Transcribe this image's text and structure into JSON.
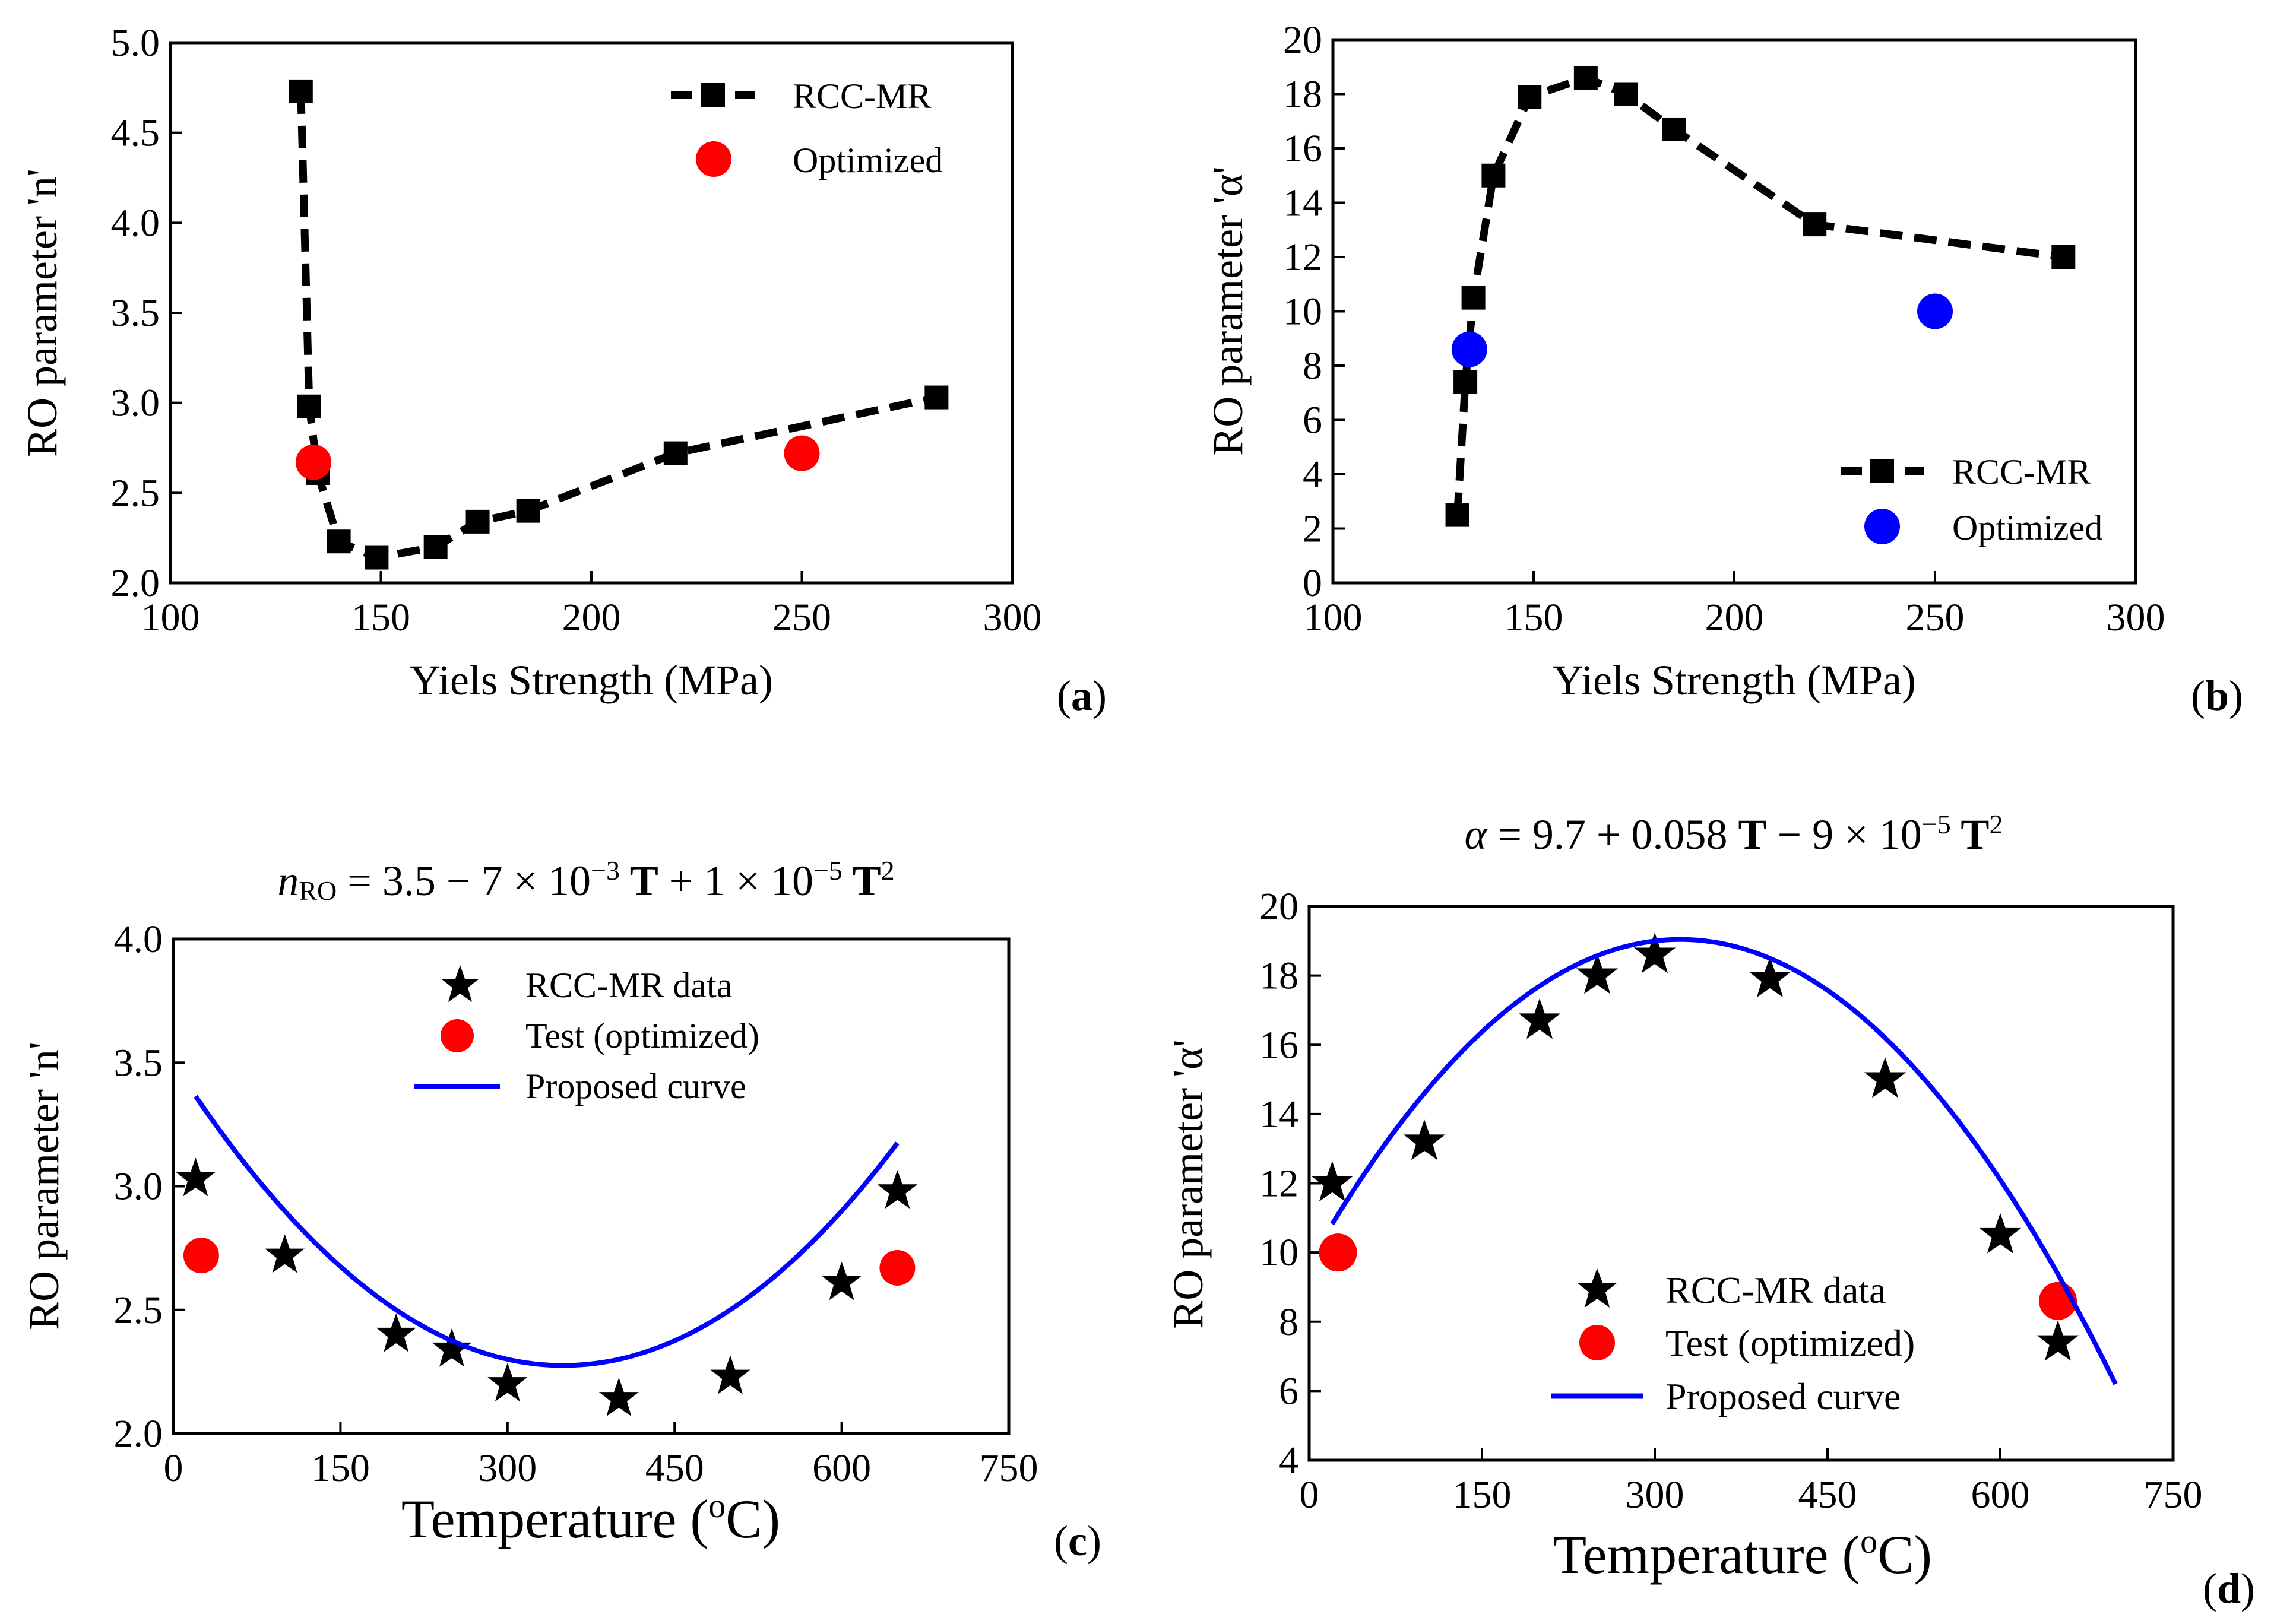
{
  "chart_data": [
    {
      "id": "a",
      "type": "line",
      "panel_label_letter": "a",
      "xlabel": "Yiels Strength (MPa)",
      "ylabel": "RO parameter 'n'",
      "xlim": [
        100,
        300
      ],
      "ylim": [
        2.0,
        5.0
      ],
      "xticks": [
        "100",
        "150",
        "200",
        "250",
        "300"
      ],
      "yticks": [
        "2.0",
        "2.5",
        "3.0",
        "3.5",
        "4.0",
        "4.5",
        "5.0"
      ],
      "legend_position": "top-right",
      "series": [
        {
          "name": "RCC-MR",
          "style": "dashed-line-square",
          "color": "#000000",
          "x": [
            131,
            133,
            135,
            140,
            149,
            163,
            173,
            185,
            220,
            282
          ],
          "y": [
            4.73,
            2.98,
            2.61,
            2.23,
            2.14,
            2.2,
            2.34,
            2.4,
            2.72,
            3.03
          ]
        },
        {
          "name": "Optimized",
          "style": "circle",
          "color": "#ff0000",
          "x": [
            134,
            250
          ],
          "y": [
            2.67,
            2.72
          ]
        }
      ]
    },
    {
      "id": "b",
      "type": "line",
      "panel_label_letter": "b",
      "xlabel": "Yiels Strength (MPa)",
      "ylabel": "RO parameter 'α'",
      "xlim": [
        100,
        300
      ],
      "ylim": [
        0,
        20
      ],
      "xticks": [
        "100",
        "150",
        "200",
        "250",
        "300"
      ],
      "yticks": [
        "0",
        "2",
        "4",
        "6",
        "8",
        "10",
        "12",
        "14",
        "16",
        "18",
        "20"
      ],
      "legend_position": "bottom-right",
      "series": [
        {
          "name": "RCC-MR",
          "style": "dashed-line-square",
          "color": "#000000",
          "x": [
            131,
            133,
            135,
            140,
            149,
            163,
            173,
            185,
            220,
            282
          ],
          "y": [
            2.5,
            7.4,
            10.5,
            15.0,
            17.9,
            18.6,
            18.0,
            16.7,
            13.2,
            12.0
          ]
        },
        {
          "name": "Optimized",
          "style": "circle",
          "color": "#0000ff",
          "x": [
            134,
            250
          ],
          "y": [
            8.6,
            10.0
          ]
        }
      ]
    },
    {
      "id": "c",
      "type": "scatter",
      "panel_label_letter": "c",
      "equation": {
        "lhs": "n",
        "sub": "RO",
        "part1": " = 3.5 − 7 × 10",
        "exp1": "−3",
        "t1": " T",
        "part2": " + 1 × 10",
        "exp2": "−5",
        "t2": " T",
        "exp3": "2"
      },
      "xlabel_main": "Temperature (",
      "xlabel_sup": "o",
      "xlabel_unit": "C)",
      "ylabel": "RO parameter 'n'",
      "xlim": [
        0,
        750
      ],
      "ylim": [
        2.0,
        4.0
      ],
      "xticks": [
        "0",
        "150",
        "300",
        "450",
        "600",
        "750"
      ],
      "yticks": [
        "2.0",
        "2.5",
        "3.0",
        "3.5",
        "4.0"
      ],
      "legend_position": "top-center",
      "series": [
        {
          "name": "RCC-MR data",
          "style": "star",
          "color": "#000000",
          "x": [
            20,
            100,
            200,
            250,
            300,
            400,
            500,
            600,
            650
          ],
          "y": [
            3.03,
            2.72,
            2.4,
            2.34,
            2.2,
            2.14,
            2.23,
            2.61,
            2.98
          ]
        },
        {
          "name": "Test (optimized)",
          "style": "circle",
          "color": "#ff0000",
          "x": [
            25,
            650
          ],
          "y": [
            2.72,
            2.67
          ]
        },
        {
          "name": "Proposed curve",
          "style": "line",
          "color": "#0000ff",
          "x_range": [
            20,
            650
          ],
          "coefficients": [
            3.5,
            -0.007,
            1e-05
          ]
        }
      ]
    },
    {
      "id": "d",
      "type": "scatter",
      "panel_label_letter": "d",
      "equation": {
        "lhs": "α",
        "part1": " = 9.7 + 0.058 ",
        "t1": "T",
        "part2": " − 9 × 10",
        "exp2": "−5",
        "t2": " T",
        "exp3": "2"
      },
      "xlabel_main": "Temperature (",
      "xlabel_sup": "o",
      "xlabel_unit": "C)",
      "ylabel": "RO parameter 'α'",
      "xlim": [
        0,
        750
      ],
      "ylim": [
        4,
        20
      ],
      "xticks": [
        "0",
        "150",
        "300",
        "450",
        "600",
        "750"
      ],
      "yticks": [
        "4",
        "6",
        "8",
        "10",
        "12",
        "14",
        "16",
        "18",
        "20"
      ],
      "legend_position": "bottom-center",
      "series": [
        {
          "name": "RCC-MR data",
          "style": "star",
          "color": "#000000",
          "x": [
            20,
            100,
            200,
            250,
            300,
            400,
            500,
            600,
            650
          ],
          "y": [
            12.0,
            13.2,
            16.7,
            18.0,
            18.6,
            17.9,
            15.0,
            10.5,
            7.4
          ]
        },
        {
          "name": "Test (optimized)",
          "style": "circle",
          "color": "#ff0000",
          "x": [
            25,
            650
          ],
          "y": [
            10.0,
            8.6
          ]
        },
        {
          "name": "Proposed curve",
          "style": "line",
          "color": "#0000ff",
          "x_range": [
            20,
            700
          ],
          "coefficients": [
            9.7,
            0.058,
            -9e-05
          ]
        }
      ]
    }
  ]
}
